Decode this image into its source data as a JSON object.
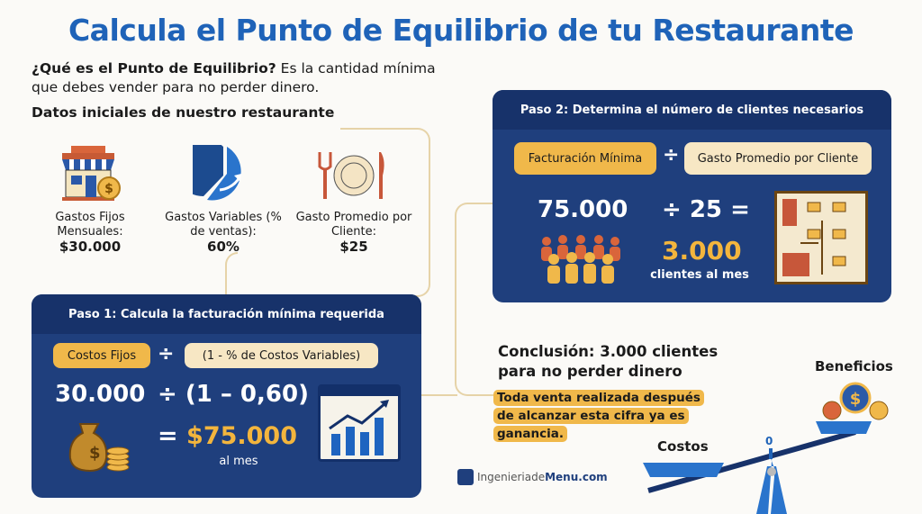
{
  "title": "Calcula el Punto de Equilibrio de tu Restaurante",
  "intro": {
    "bold": "¿Qué es el Punto de Equilibrio?",
    "text": " Es la cantidad mínima que debes vender para no perder dinero."
  },
  "datos_heading": "Datos iniciales de nuestro restaurante",
  "datos": [
    {
      "icon": "storefront-dollar-icon",
      "label": "Gastos Fijos Mensuales:",
      "value": "$30.000"
    },
    {
      "icon": "pie-chart-icon",
      "label": "Gastos Variables (% de ventas):",
      "value": "60%"
    },
    {
      "icon": "plate-fork-knife-icon",
      "label": "Gasto Promedio por Cliente:",
      "value": "$25"
    }
  ],
  "paso1": {
    "title": "Paso 1: Calcula la facturación mínima requerida",
    "pill_a": "Costos Fijos",
    "op_div": "÷",
    "pill_b": "(1 - % de Costos Variables)",
    "num_a": "30.000",
    "expr_b": "÷ (1 – 0,60)",
    "eq": "=",
    "result": "$75.000",
    "result_unit": "al mes"
  },
  "paso2": {
    "title": "Paso 2: Determina el número de clientes necesarios",
    "pill_a": "Facturación Mínima",
    "op_div": "÷",
    "pill_b": "Gasto Promedio por Cliente",
    "num_a": "75.000",
    "expr_b": "÷ 25 =",
    "result": "3.000",
    "result_unit": "clientes al mes"
  },
  "conclusion": {
    "title": "Conclusión: 3.000 clientes para no perder dinero",
    "highlight": "Toda venta realizada después de alcanzar esta cifra ya es ganancia."
  },
  "scale": {
    "left_label": "Costos",
    "right_label": "Beneficios",
    "marker": "0"
  },
  "brand": {
    "prefix": "Ingenieriade",
    "bold": "Menu",
    "suffix": ".com"
  },
  "colors": {
    "title": "#1f63b8",
    "panel": "#1f3f7d",
    "gold": "#f0b84a",
    "cream": "#f7e7c4"
  }
}
